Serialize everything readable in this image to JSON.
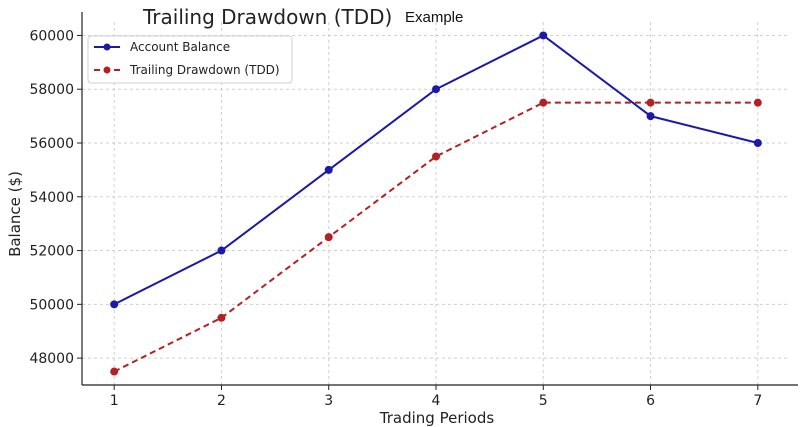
{
  "title": {
    "main": "Trailing Drawdown (TDD)",
    "suffix": "Example"
  },
  "colors": {
    "balance": "#1a1aa6",
    "tdd": "#b22222",
    "grid": "#cfcfcf",
    "axis": "#222222"
  },
  "chart_data": {
    "type": "line",
    "title": "Trailing Drawdown (TDD) Example",
    "xlabel": "Trading Periods",
    "ylabel": "Balance ($)",
    "x": [
      1,
      2,
      3,
      4,
      5,
      6,
      7
    ],
    "xlim": [
      0.7,
      7.3
    ],
    "ylim": [
      47000,
      60500
    ],
    "yticks": [
      48000,
      50000,
      52000,
      54000,
      56000,
      58000,
      60000
    ],
    "grid": true,
    "legend_position": "top-left",
    "series": [
      {
        "name": "Account Balance",
        "style": "solid",
        "color": "#1a1aa6",
        "values": [
          50000,
          52000,
          55000,
          58000,
          60000,
          57000,
          56000
        ]
      },
      {
        "name": "Trailing Drawdown (TDD)",
        "style": "dashed",
        "color": "#b22222",
        "values": [
          47500,
          49500,
          52500,
          55500,
          57500,
          57500,
          57500
        ]
      }
    ]
  }
}
